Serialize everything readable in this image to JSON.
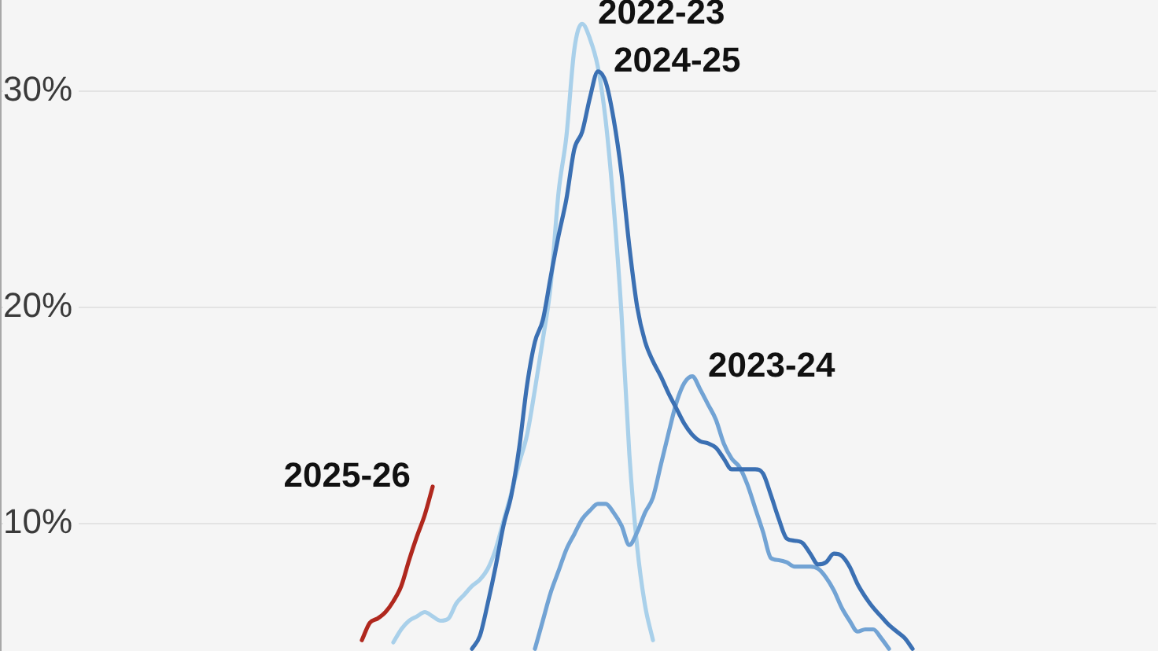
{
  "chart_data": {
    "type": "line",
    "categories": [
      null,
      null,
      null,
      null,
      null,
      null,
      null,
      null,
      null,
      null,
      null,
      null,
      null,
      null,
      null,
      null,
      null,
      null,
      null,
      null,
      null,
      null,
      null,
      null,
      null,
      null,
      null,
      null,
      null,
      null,
      null,
      null,
      null,
      null,
      null,
      null,
      null,
      null,
      null,
      null,
      null,
      null,
      null,
      null,
      null,
      null,
      null,
      null,
      null,
      null,
      null,
      null,
      null,
      null,
      null,
      null,
      null,
      null,
      null,
      null,
      null,
      null,
      null,
      null,
      null,
      null,
      null,
      null,
      null,
      null,
      null,
      null,
      null,
      null,
      null,
      null,
      null,
      null,
      null,
      null,
      null,
      null,
      null,
      null,
      null,
      null,
      null,
      null,
      null,
      null,
      null,
      null,
      null,
      null,
      null,
      null,
      null,
      null,
      null,
      null,
      null,
      null,
      null,
      null,
      null,
      null,
      null,
      null,
      null,
      null,
      null,
      null,
      null,
      null,
      null,
      null,
      null,
      null,
      null,
      null,
      null,
      null,
      null,
      null,
      null,
      null,
      null,
      null,
      null,
      null,
      null,
      null,
      null,
      null,
      null,
      null,
      null,
      null,
      null,
      null,
      null,
      null,
      null,
      null,
      null,
      null,
      null,
      null
    ],
    "series": [
      {
        "name": "2022-23",
        "color": "#a9d0ea",
        "values": [
          null,
          null,
          null,
          null,
          null,
          null,
          null,
          null,
          null,
          null,
          null,
          null,
          null,
          null,
          null,
          null,
          null,
          null,
          null,
          null,
          null,
          null,
          null,
          null,
          null,
          null,
          null,
          null,
          null,
          null,
          null,
          null,
          null,
          null,
          null,
          null,
          null,
          null,
          null,
          null,
          null,
          null,
          null,
          null,
          null,
          null,
          null,
          null,
          null,
          null,
          4.5,
          5.1,
          5.5,
          5.7,
          5.9,
          5.7,
          5.5,
          5.6,
          6.3,
          6.7,
          7.1,
          7.4,
          7.9,
          8.8,
          10.1,
          11.4,
          12.8,
          14.1,
          16.2,
          18.5,
          21.0,
          25.3,
          27.9,
          31.9,
          33.1,
          32.4,
          31.1,
          28.6,
          24.7,
          19.7,
          13.2,
          8.9,
          6.2,
          4.6,
          null,
          null,
          null,
          null,
          null,
          null,
          null,
          null,
          null,
          null,
          null,
          null,
          null,
          null,
          null,
          null,
          null,
          null,
          null,
          null,
          null,
          null,
          null,
          null,
          null,
          null,
          null,
          null,
          null,
          null,
          null,
          null,
          null,
          null,
          null,
          null,
          null,
          null,
          null,
          null,
          null,
          null,
          null,
          null,
          null,
          null,
          null,
          null,
          null,
          null,
          null,
          null,
          null,
          null,
          null,
          null,
          null,
          null,
          null,
          null,
          null,
          null,
          null,
          null
        ]
      },
      {
        "name": "2023-24",
        "color": "#72a3d4",
        "values": [
          null,
          null,
          null,
          null,
          null,
          null,
          null,
          null,
          null,
          null,
          null,
          null,
          null,
          null,
          null,
          null,
          null,
          null,
          null,
          null,
          null,
          null,
          null,
          null,
          null,
          null,
          null,
          null,
          null,
          null,
          null,
          null,
          null,
          null,
          null,
          null,
          null,
          null,
          null,
          null,
          null,
          null,
          null,
          null,
          null,
          null,
          null,
          null,
          null,
          null,
          null,
          null,
          null,
          null,
          null,
          null,
          null,
          null,
          null,
          null,
          null,
          null,
          null,
          null,
          null,
          null,
          null,
          null,
          4.2,
          5.5,
          6.8,
          7.8,
          8.8,
          9.5,
          10.2,
          10.6,
          10.9,
          10.9,
          10.5,
          9.9,
          9.0,
          9.6,
          10.5,
          11.2,
          12.7,
          14.2,
          15.6,
          16.5,
          16.8,
          16.2,
          15.5,
          14.8,
          13.7,
          13.0,
          12.6,
          11.8,
          10.7,
          9.6,
          8.4,
          8.3,
          8.2,
          8.0,
          8.0,
          8.0,
          7.9,
          7.5,
          6.9,
          6.1,
          5.5,
          5.0,
          5.1,
          5.1,
          4.7,
          4.2,
          null,
          null,
          null,
          null,
          null,
          null,
          null,
          null,
          null,
          null,
          null,
          null,
          null,
          null,
          null,
          null,
          null,
          null,
          null,
          null,
          null,
          null,
          null,
          null,
          null,
          null,
          null,
          null,
          null,
          null,
          null,
          null,
          null,
          null
        ]
      },
      {
        "name": "2024-25",
        "color": "#3b70b3",
        "values": [
          null,
          null,
          null,
          null,
          null,
          null,
          null,
          null,
          null,
          null,
          null,
          null,
          null,
          null,
          null,
          null,
          null,
          null,
          null,
          null,
          null,
          null,
          null,
          null,
          null,
          null,
          null,
          null,
          null,
          null,
          null,
          null,
          null,
          null,
          null,
          null,
          null,
          null,
          null,
          null,
          null,
          null,
          null,
          null,
          null,
          null,
          null,
          null,
          null,
          null,
          null,
          null,
          null,
          null,
          null,
          null,
          null,
          null,
          null,
          null,
          4.2,
          4.8,
          6.3,
          8.0,
          9.9,
          11.3,
          13.5,
          16.4,
          18.4,
          19.4,
          21.4,
          23.3,
          25.0,
          27.3,
          28.1,
          29.7,
          30.9,
          30.4,
          28.7,
          26.2,
          22.8,
          20.0,
          18.4,
          17.5,
          16.8,
          16.0,
          15.3,
          14.6,
          14.1,
          13.8,
          13.7,
          13.5,
          13.0,
          12.5,
          12.5,
          12.5,
          12.5,
          12.3,
          11.3,
          10.2,
          9.3,
          9.2,
          9.1,
          8.6,
          8.1,
          8.2,
          8.6,
          8.5,
          8.0,
          7.2,
          6.6,
          6.1,
          5.7,
          5.3,
          5.0,
          4.7,
          4.2,
          null,
          null,
          null,
          null,
          null,
          null,
          null,
          null,
          null,
          null,
          null,
          null,
          null,
          null,
          null,
          null,
          null,
          null,
          null,
          null,
          null,
          null,
          null,
          null,
          null,
          null,
          null,
          null,
          null,
          null,
          null
        ]
      },
      {
        "name": "2025-26",
        "color": "#b0281e",
        "values": [
          null,
          null,
          null,
          null,
          null,
          null,
          null,
          null,
          null,
          null,
          null,
          null,
          null,
          null,
          null,
          null,
          null,
          null,
          null,
          null,
          null,
          null,
          null,
          null,
          null,
          null,
          null,
          null,
          null,
          null,
          null,
          null,
          null,
          null,
          null,
          null,
          null,
          null,
          null,
          null,
          null,
          null,
          null,
          null,
          null,
          null,
          4.6,
          5.4,
          5.6,
          5.9,
          6.4,
          7.1,
          8.3,
          9.4,
          10.4,
          11.7,
          null,
          null,
          null,
          null,
          null,
          null,
          null,
          null,
          null,
          null,
          null,
          null,
          null,
          null,
          null,
          null,
          null,
          null,
          null,
          null,
          null,
          null,
          null,
          null,
          null,
          null,
          null,
          null,
          null,
          null,
          null,
          null,
          null,
          null,
          null,
          null,
          null,
          null,
          null,
          null,
          null,
          null,
          null,
          null,
          null,
          null,
          null,
          null,
          null,
          null,
          null,
          null,
          null,
          null,
          null,
          null,
          null,
          null,
          null,
          null,
          null,
          null,
          null,
          null,
          null,
          null,
          null,
          null,
          null,
          null,
          null,
          null,
          null,
          null,
          null,
          null,
          null,
          null,
          null,
          null,
          null,
          null,
          null,
          null,
          null,
          null,
          null,
          null,
          null,
          null,
          null,
          null
        ]
      }
    ],
    "ylim": [
      4.1,
      34.2
    ],
    "yticks": [
      {
        "value": 10,
        "label": "10%"
      },
      {
        "value": 20,
        "label": "20%"
      },
      {
        "value": 30,
        "label": "30%"
      }
    ],
    "grid": "y"
  }
}
